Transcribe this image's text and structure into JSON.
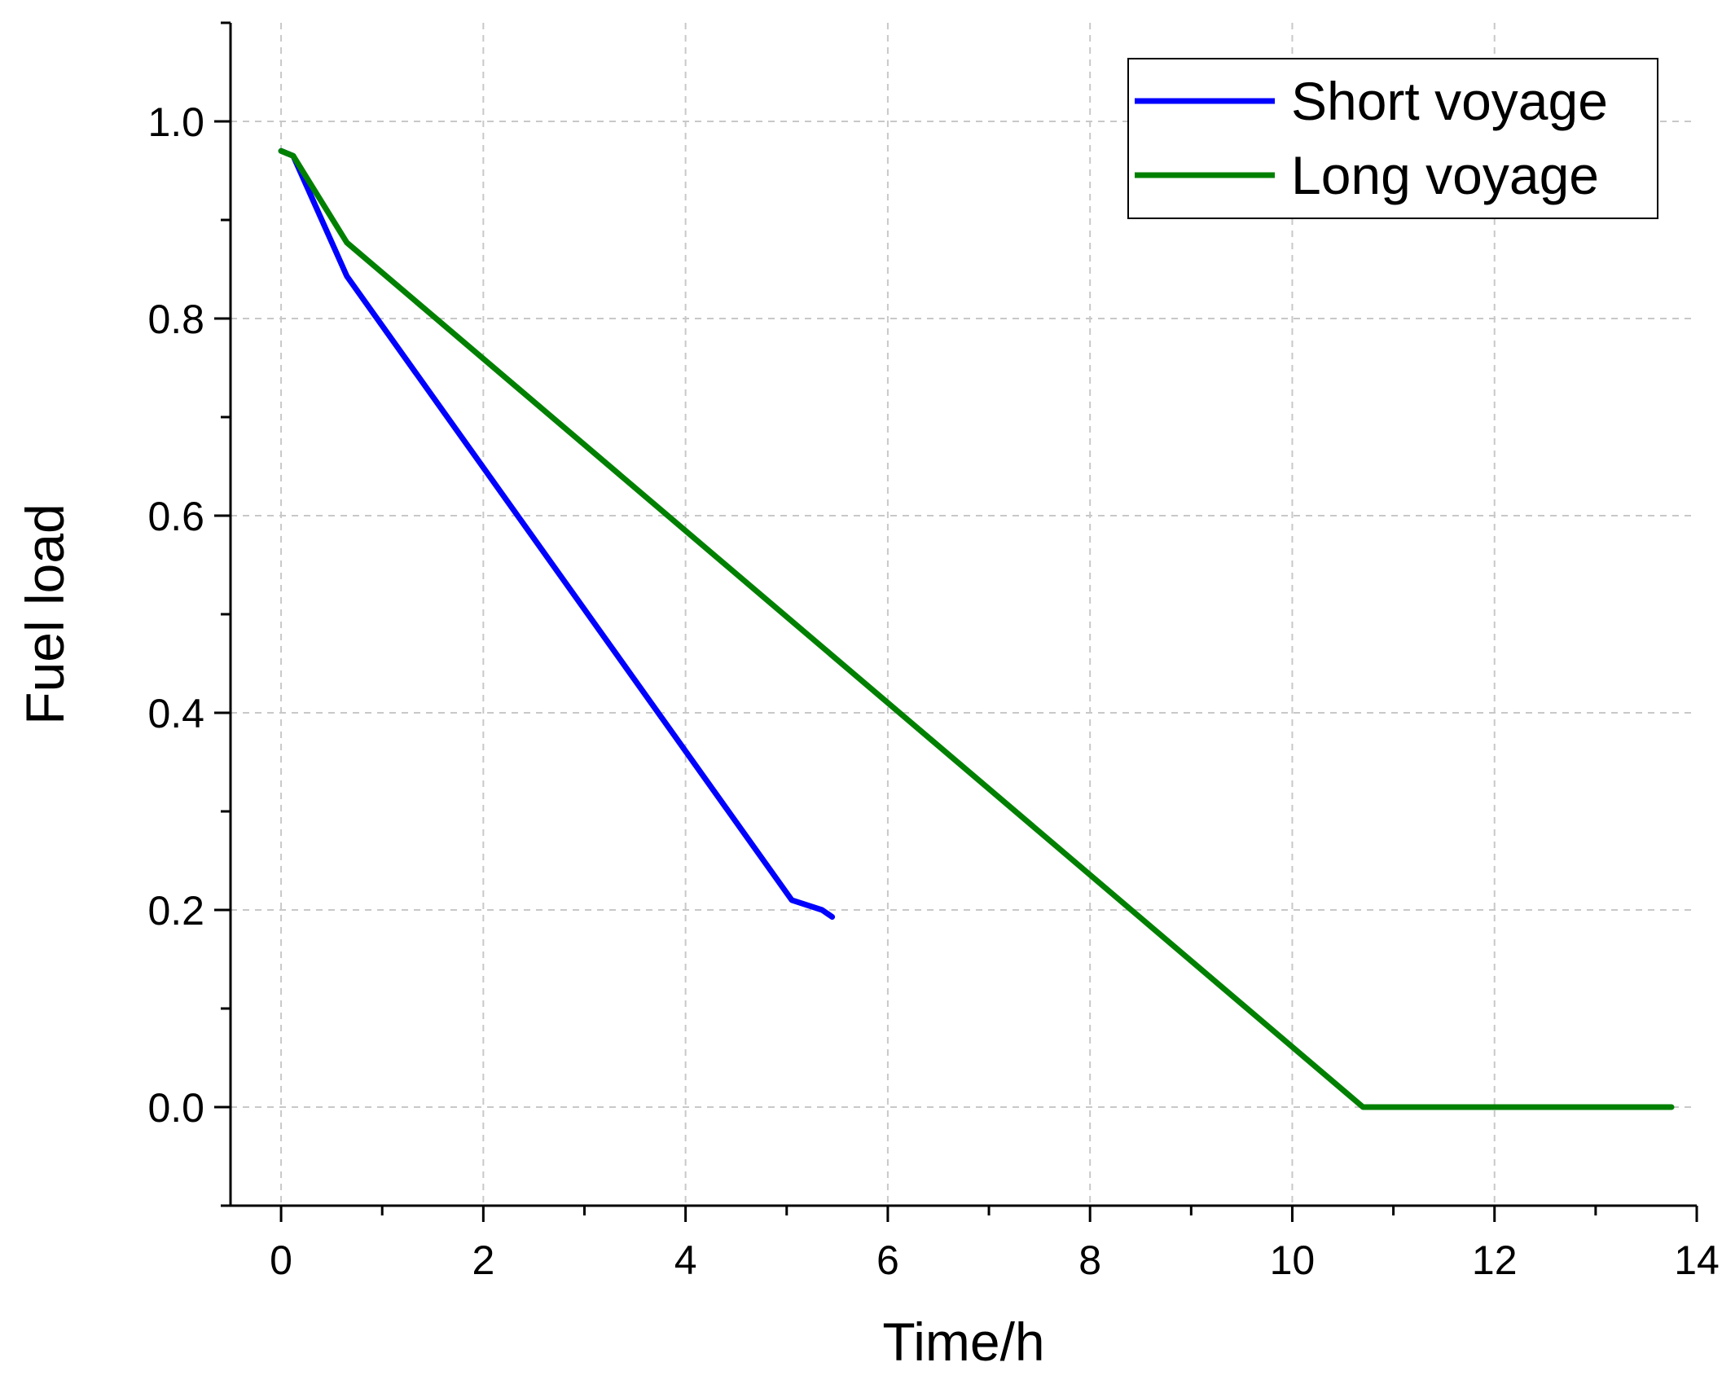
{
  "chart_data": {
    "type": "line",
    "xlabel": "Time/h",
    "ylabel": "Fuel load",
    "xlim": [
      -0.5,
      14
    ],
    "ylim": [
      -0.1,
      1.1
    ],
    "xticks": [
      0,
      2,
      4,
      6,
      8,
      10,
      12,
      14
    ],
    "xtick_labels": [
      "0",
      "2",
      "4",
      "6",
      "8",
      "10",
      "12",
      "14"
    ],
    "yticks": [
      0.0,
      0.2,
      0.4,
      0.6,
      0.8,
      1.0
    ],
    "ytick_labels": [
      "0.0",
      "0.2",
      "0.4",
      "0.6",
      "0.8",
      "1.0"
    ],
    "grid": true,
    "legend_position": "top-right",
    "series": [
      {
        "name": "Short voyage",
        "color": "#0000ff",
        "x": [
          0,
          0.12,
          0.65,
          5.05,
          5.35,
          5.45
        ],
        "y": [
          0.97,
          0.965,
          0.843,
          0.21,
          0.2,
          0.193
        ]
      },
      {
        "name": "Long voyage",
        "color": "#008000",
        "x": [
          0,
          0.12,
          0.65,
          10.7,
          13.75
        ],
        "y": [
          0.97,
          0.965,
          0.877,
          0.0,
          0.0
        ]
      }
    ]
  }
}
